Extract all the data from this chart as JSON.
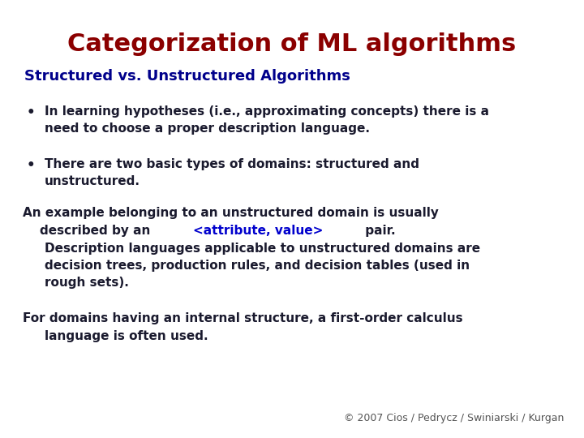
{
  "title": "Categorization of ML algorithms",
  "title_color": "#8B0000",
  "title_fontsize": 22,
  "subtitle": "Structured vs. Unstructured Algorithms",
  "subtitle_color": "#00008B",
  "subtitle_fontsize": 13,
  "background_color": "#FFFFFF",
  "body_color": "#1a1a2e",
  "body_fontsize": 11,
  "copyright_text": "© 2007 Cios / Pedrycz / Swiniarski / Kurgan",
  "copyright_color": "#555555",
  "copyright_fontsize": 9,
  "highlight_color": "#0000CD",
  "font_family": "DejaVu Sans"
}
